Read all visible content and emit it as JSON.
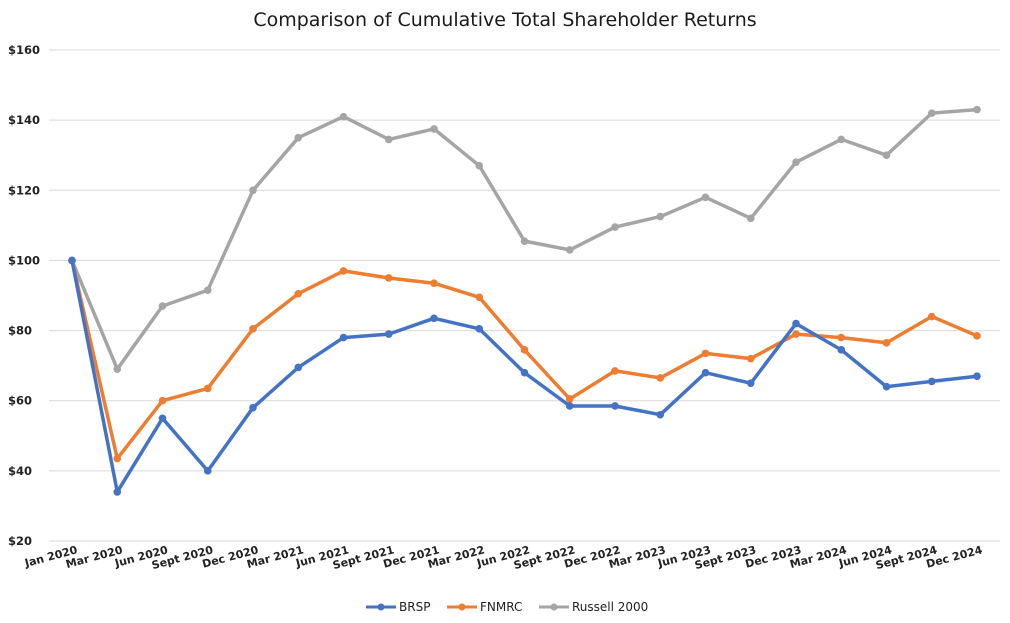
{
  "chart_data": {
    "type": "line",
    "title": "Comparison of Cumulative Total Shareholder Returns",
    "xlabel": "",
    "ylabel": "",
    "ylim": [
      20,
      160
    ],
    "yticks": [
      "$20",
      "$40",
      "$60",
      "$80",
      "$100",
      "$120",
      "$140",
      "$160"
    ],
    "ytick_values": [
      20,
      40,
      60,
      80,
      100,
      120,
      140,
      160
    ],
    "categories": [
      "Jan 2020",
      "Mar 2020",
      "Jun 2020",
      "Sept 2020",
      "Dec 2020",
      "Mar 2021",
      "Jun 2021",
      "Sept 2021",
      "Dec 2021",
      "Mar 2022",
      "Jun 2022",
      "Sept 2022",
      "Dec 2022",
      "Mar 2023",
      "Jun 2023",
      "Sept 2023",
      "Dec 2023",
      "Mar 2024",
      "Jun 2024",
      "Sept 2024",
      "Dec 2024"
    ],
    "grid": true,
    "legend_position": "bottom",
    "series": [
      {
        "name": "BRSP",
        "color": "#4472C4",
        "values": [
          100,
          34,
          55,
          40,
          58,
          69.5,
          78,
          79,
          83.5,
          80.5,
          68,
          58.5,
          58.5,
          56,
          68,
          65,
          82,
          74.5,
          64,
          65.5,
          67
        ]
      },
      {
        "name": "FNMRC",
        "color": "#ED7D31",
        "values": [
          100,
          43.5,
          60,
          63.5,
          80.5,
          90.5,
          97,
          95,
          93.5,
          89.5,
          74.5,
          60.5,
          68.5,
          66.5,
          73.5,
          72,
          79,
          78,
          76.5,
          84,
          78.5
        ]
      },
      {
        "name": "Russell 2000",
        "color": "#A5A5A5",
        "values": [
          100,
          69,
          87,
          91.5,
          120,
          135,
          141,
          134.5,
          137.5,
          127,
          105.5,
          103,
          109.5,
          112.5,
          118,
          112,
          128,
          134.5,
          130,
          142,
          143
        ]
      }
    ]
  }
}
